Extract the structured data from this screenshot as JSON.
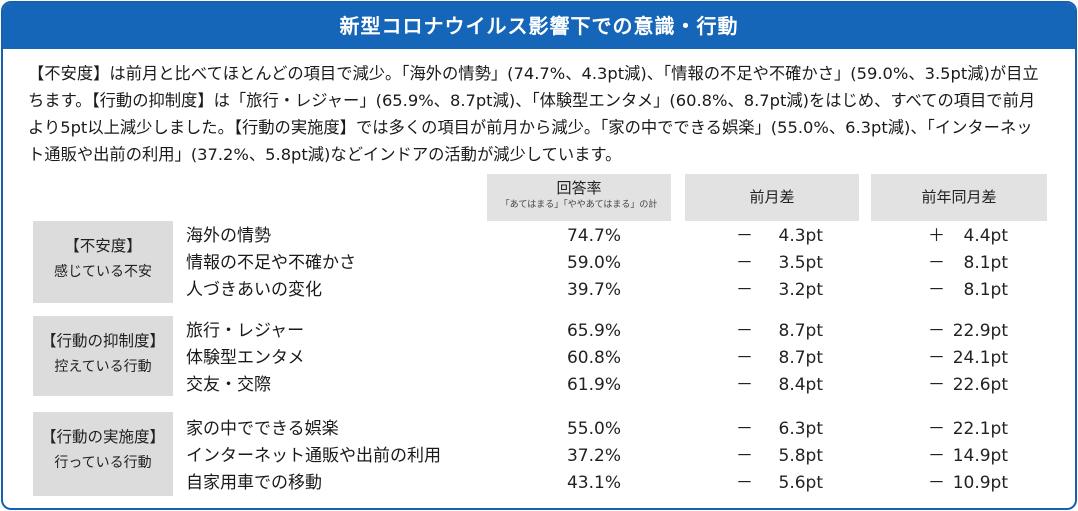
{
  "title": "新型コロナウイルス影響下での意識・行動",
  "intro": "【不安度】は前月と比べてほとんどの項目で減少。「海外の情勢」(74.7%、4.3pt減)、「情報の不足や不確かさ」(59.0%、3.5pt減)が目立ちます。【行動の抑制度】は「旅行・レジャー」(65.9%、8.7pt減)、「体験型エンタメ」(60.8%、8.7pt減)をはじめ、すべての項目で前月より5pt以上減少しました。【行動の実施度】では多くの項目が前月から減少。「家の中でできる娯楽」(55.0%、6.3pt減)、「インターネット通販や出前の利用」(37.2%、5.8pt減)などインドアの活動が減少しています。",
  "headers": {
    "rate_main": "回答率",
    "rate_sub": "「あてはまる」「ややあてはまる」の計",
    "mom": "前月差",
    "yoy": "前年同月差"
  },
  "groups": [
    {
      "cat_line1": "【不安度】",
      "cat_line2": "感じている不安",
      "rows": [
        {
          "item": "海外の情勢",
          "rate": "74.7%",
          "mom_sign": "－",
          "mom": "4.3pt",
          "yoy_sign": "＋",
          "yoy": "4.4pt"
        },
        {
          "item": "情報の不足や不確かさ",
          "rate": "59.0%",
          "mom_sign": "－",
          "mom": "3.5pt",
          "yoy_sign": "－",
          "yoy": "8.1pt"
        },
        {
          "item": "人づきあいの変化",
          "rate": "39.7%",
          "mom_sign": "－",
          "mom": "3.2pt",
          "yoy_sign": "－",
          "yoy": "8.1pt"
        }
      ]
    },
    {
      "cat_line1": "【行動の抑制度】",
      "cat_line2": "控えている行動",
      "rows": [
        {
          "item": "旅行・レジャー",
          "rate": "65.9%",
          "mom_sign": "－",
          "mom": "8.7pt",
          "yoy_sign": "－",
          "yoy": "22.9pt"
        },
        {
          "item": "体験型エンタメ",
          "rate": "60.8%",
          "mom_sign": "－",
          "mom": "8.7pt",
          "yoy_sign": "－",
          "yoy": "24.1pt"
        },
        {
          "item": "交友・交際",
          "rate": "61.9%",
          "mom_sign": "－",
          "mom": "8.4pt",
          "yoy_sign": "－",
          "yoy": "22.6pt"
        }
      ]
    },
    {
      "cat_line1": "【行動の実施度】",
      "cat_line2": "行っている行動",
      "rows": [
        {
          "item": "家の中でできる娯楽",
          "rate": "55.0%",
          "mom_sign": "－",
          "mom": "6.3pt",
          "yoy_sign": "－",
          "yoy": "22.1pt"
        },
        {
          "item": "インターネット通販や出前の利用",
          "rate": "37.2%",
          "mom_sign": "－",
          "mom": "5.8pt",
          "yoy_sign": "－",
          "yoy": "14.9pt"
        },
        {
          "item": "自家用車での移動",
          "rate": "43.1%",
          "mom_sign": "－",
          "mom": "5.6pt",
          "yoy_sign": "－",
          "yoy": "10.9pt"
        }
      ]
    }
  ]
}
